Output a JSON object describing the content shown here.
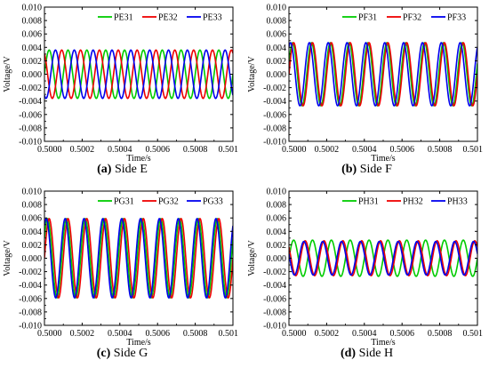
{
  "chart_data": [
    {
      "type": "line",
      "caption_letter": "(a)",
      "caption_text": " Side E",
      "xlabel": "Time/s",
      "ylabel": "Voltage/V",
      "xlim": [
        0.5,
        0.501
      ],
      "ylim": [
        -0.01,
        0.01
      ],
      "xticks": [
        "0.5000",
        "0.5002",
        "0.5004",
        "0.5006",
        "0.5008",
        "0.501"
      ],
      "yticks": [
        "0.010",
        "0.008",
        "0.006",
        "0.004",
        "0.002",
        "0.000",
        "-0.002",
        "-0.004",
        "-0.006",
        "-0.008",
        "-0.010"
      ],
      "legend_position": "top-right",
      "frequency_hz": 10000,
      "series": [
        {
          "name": "PE31",
          "color": "#00cc00",
          "amplitude": 0.0036,
          "phase_deg": 0
        },
        {
          "name": "PE32",
          "color": "#ee0000",
          "amplitude": 0.0036,
          "phase_deg": 120
        },
        {
          "name": "PE33",
          "color": "#0000ee",
          "amplitude": 0.0036,
          "phase_deg": 240
        }
      ]
    },
    {
      "type": "line",
      "caption_letter": "(b)",
      "caption_text": " Side F",
      "xlabel": "Time/s",
      "ylabel": "Voltage/V",
      "xlim": [
        0.5,
        0.501
      ],
      "ylim": [
        -0.01,
        0.01
      ],
      "xticks": [
        "0.5000",
        "0.5002",
        "0.5004",
        "0.5006",
        "0.5008",
        "0.501"
      ],
      "yticks": [
        "0.010",
        "0.008",
        "0.006",
        "0.004",
        "0.002",
        "0.000",
        "-0.002",
        "-0.004",
        "-0.006",
        "-0.008",
        "-0.010"
      ],
      "legend_position": "top-right",
      "frequency_hz": 10000,
      "series": [
        {
          "name": "PF31",
          "color": "#00cc00",
          "amplitude": 0.0047,
          "phase_deg": 20
        },
        {
          "name": "PF32",
          "color": "#ee0000",
          "amplitude": 0.0047,
          "phase_deg": 0
        },
        {
          "name": "PF33",
          "color": "#0000ee",
          "amplitude": 0.0047,
          "phase_deg": 60
        }
      ]
    },
    {
      "type": "line",
      "caption_letter": "(c)",
      "caption_text": " Side G",
      "xlabel": "Time/s",
      "ylabel": "Voltage/V",
      "xlim": [
        0.5,
        0.501
      ],
      "ylim": [
        -0.01,
        0.01
      ],
      "xticks": [
        "0.5000",
        "0.5002",
        "0.5004",
        "0.5006",
        "0.5008",
        "0.501"
      ],
      "yticks": [
        "0.010",
        "0.008",
        "0.006",
        "0.004",
        "0.002",
        "0.000",
        "-0.002",
        "-0.004",
        "-0.006",
        "-0.008",
        "-0.010"
      ],
      "legend_position": "top-right",
      "frequency_hz": 10000,
      "series": [
        {
          "name": "PG31",
          "color": "#00cc00",
          "amplitude": 0.0059,
          "phase_deg": 30
        },
        {
          "name": "PG32",
          "color": "#ee0000",
          "amplitude": 0.0059,
          "phase_deg": 0
        },
        {
          "name": "PG33",
          "color": "#0000ee",
          "amplitude": 0.0059,
          "phase_deg": 55
        }
      ]
    },
    {
      "type": "line",
      "caption_letter": "(d)",
      "caption_text": " Side H",
      "xlabel": "Time/s",
      "ylabel": "Voltage/V",
      "xlim": [
        0.5,
        0.501
      ],
      "ylim": [
        -0.01,
        0.01
      ],
      "xticks": [
        "0.5000",
        "0.5002",
        "0.5004",
        "0.5006",
        "0.5008",
        "0.501"
      ],
      "yticks": [
        "0.010",
        "0.008",
        "0.006",
        "0.004",
        "0.002",
        "0.000",
        "-0.002",
        "-0.004",
        "-0.006",
        "-0.008",
        "-0.010"
      ],
      "legend_position": "top-right",
      "frequency_hz": 10000,
      "series": [
        {
          "name": "PH31",
          "color": "#00cc00",
          "amplitude": 0.0027,
          "phase_deg": 0
        },
        {
          "name": "PH32",
          "color": "#ee0000",
          "amplitude": 0.0026,
          "phase_deg": 140
        },
        {
          "name": "PH33",
          "color": "#0000ee",
          "amplitude": 0.0025,
          "phase_deg": 165
        }
      ]
    }
  ]
}
